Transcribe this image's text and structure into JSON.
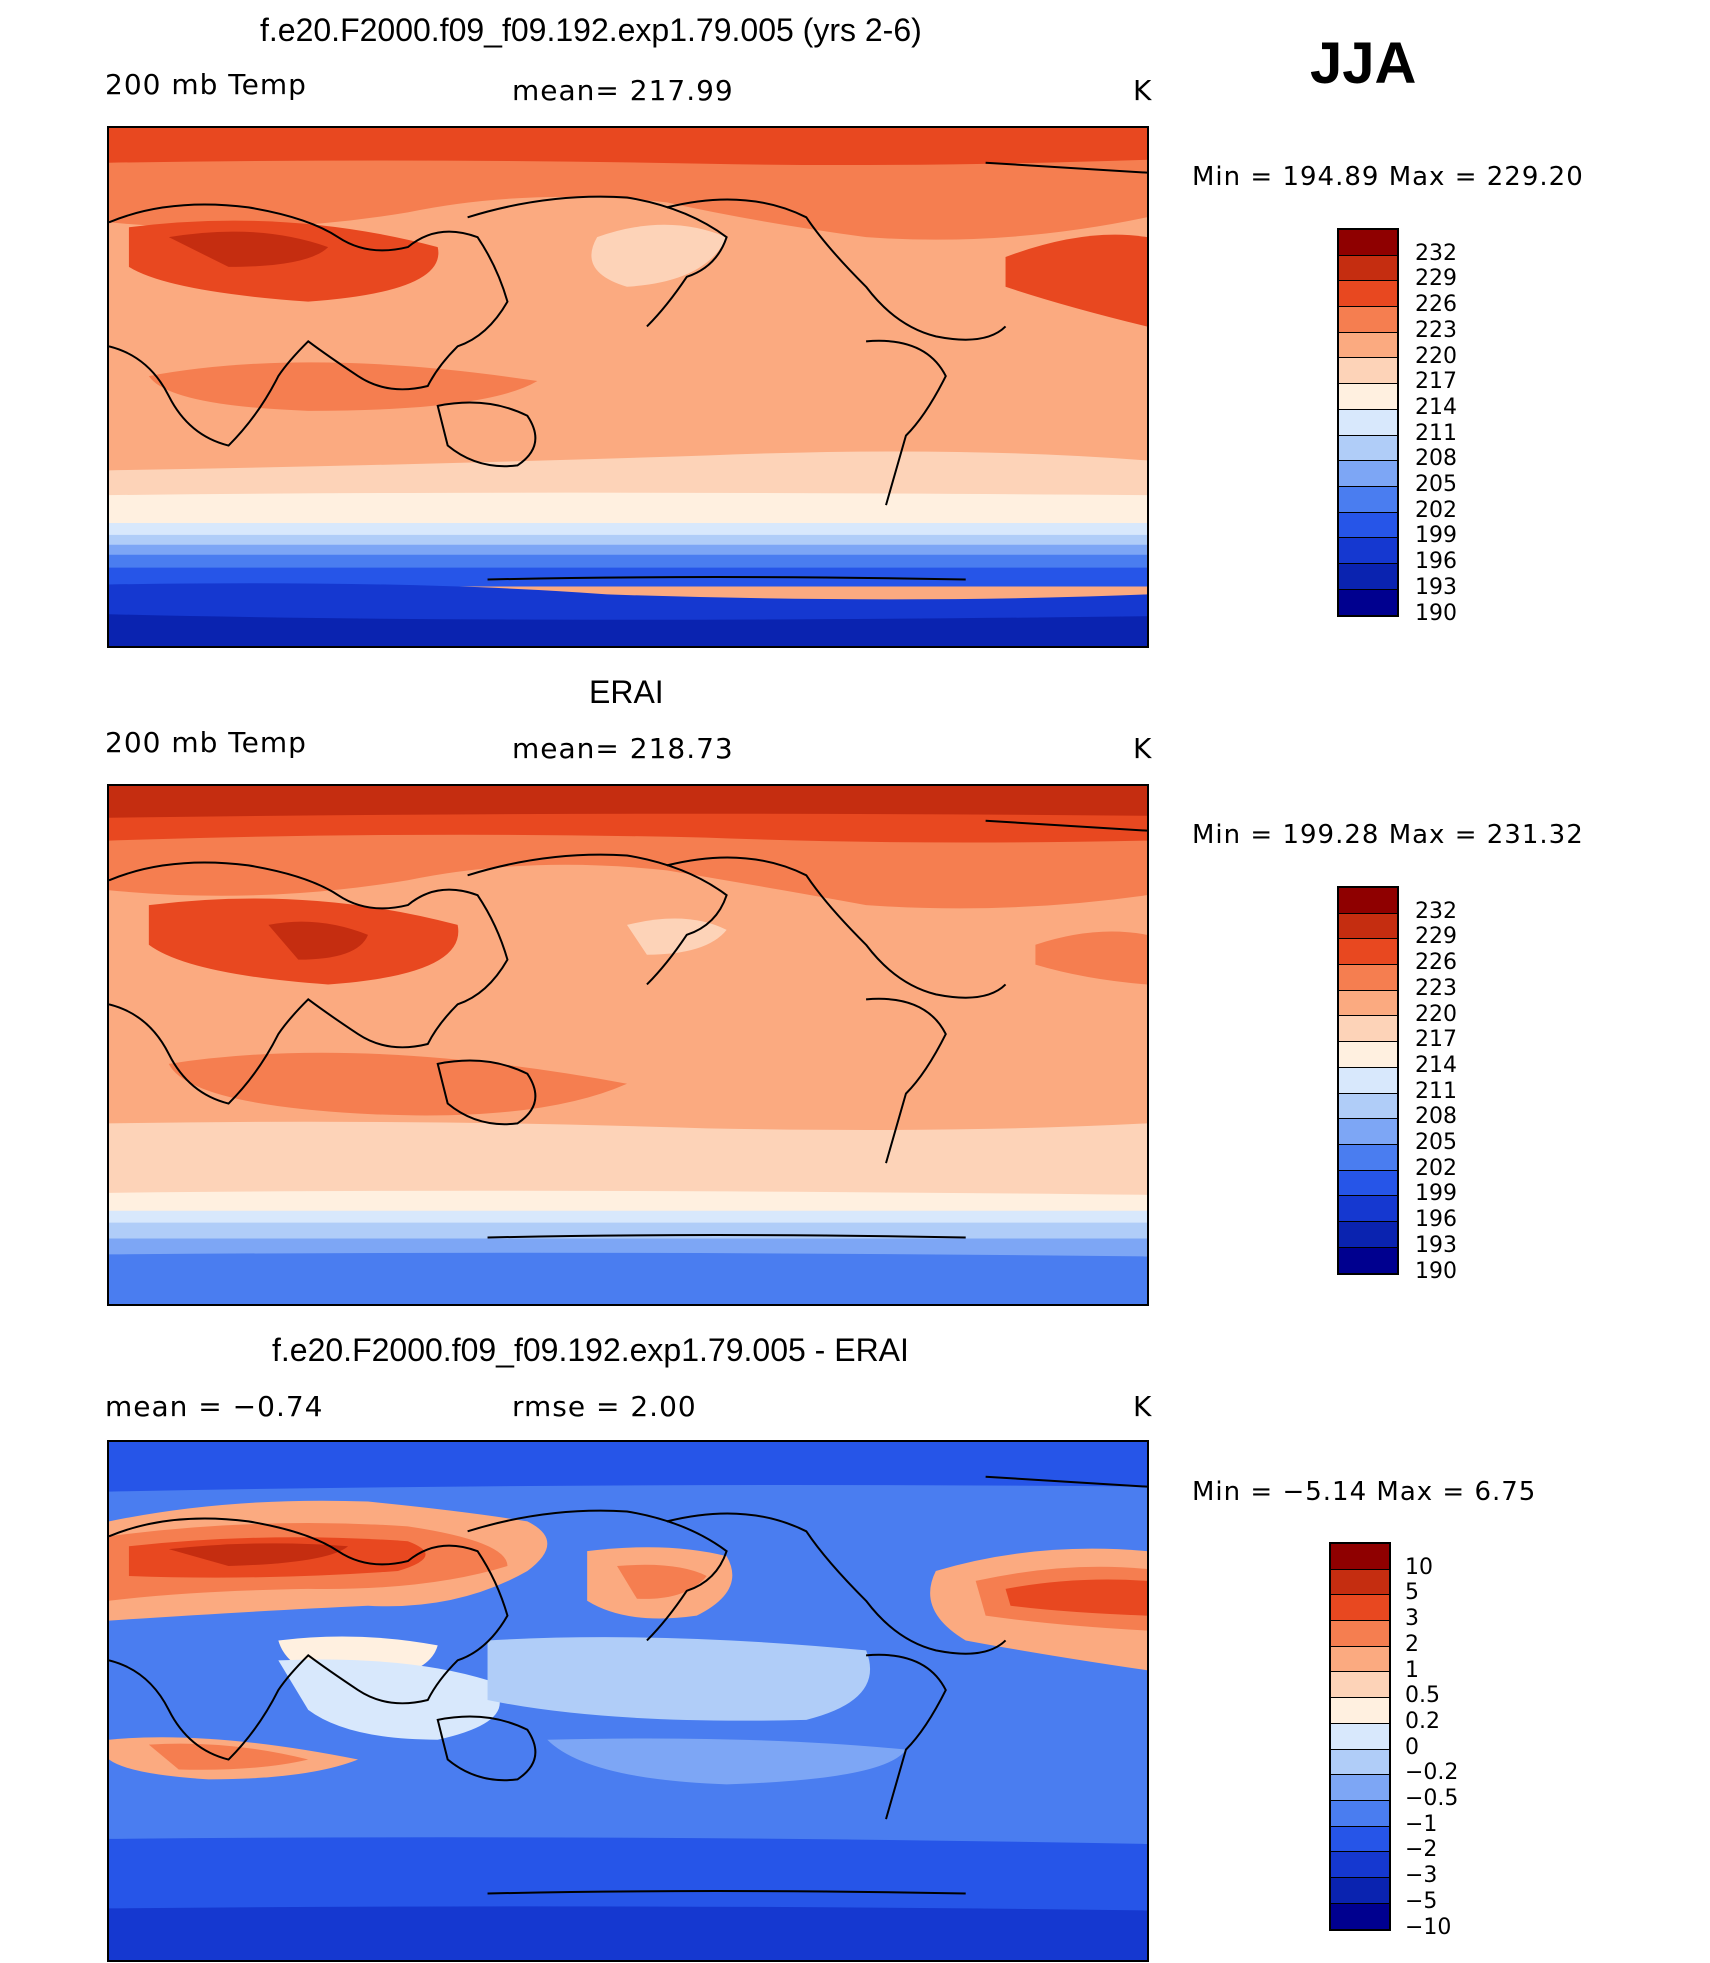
{
  "season": "JJA",
  "colors": {
    "warm_scale": [
      "#00008f",
      "#0a23b0",
      "#1538d0",
      "#2655e8",
      "#4a7df0",
      "#7da6f5",
      "#b0cdf8",
      "#d8e8fc",
      "#fff0e0",
      "#fdd3b8",
      "#fbaa80",
      "#f57e50",
      "#e84820",
      "#c52d10",
      "#8f0000"
    ],
    "diff_scale": [
      "#00008f",
      "#0a23b0",
      "#1538d0",
      "#2655e8",
      "#4a7df0",
      "#7da6f5",
      "#b0cdf8",
      "#d8e8fc",
      "#fff0e0",
      "#fdd3b8",
      "#fbaa80",
      "#f57e50",
      "#e84820",
      "#c52d10",
      "#8f0000"
    ],
    "coast": "#000000"
  },
  "panels": [
    {
      "title": "f.e20.F2000.f09_f09.192.exp1.79.005 (yrs 2-6)",
      "left_label": "200 mb Temp",
      "center_label": "mean= 217.99",
      "units": "K",
      "minmax": "Min  =  194.89  Max  =  229.20",
      "colorbar_labels": [
        "232",
        "229",
        "226",
        "223",
        "220",
        "217",
        "214",
        "211",
        "208",
        "205",
        "202",
        "199",
        "196",
        "193",
        "190"
      ]
    },
    {
      "title": "ERAI",
      "left_label": "200 mb Temp",
      "center_label": "mean= 218.73",
      "units": "K",
      "minmax": "Min  =  199.28  Max  =  231.32",
      "colorbar_labels": [
        "232",
        "229",
        "226",
        "223",
        "220",
        "217",
        "214",
        "211",
        "208",
        "205",
        "202",
        "199",
        "196",
        "193",
        "190"
      ]
    },
    {
      "title": "f.e20.F2000.f09_f09.192.exp1.79.005 - ERAI",
      "left_label": "mean  =    −0.74",
      "center_label": "rmse  =     2.00",
      "units": "K",
      "minmax": "Min  =   −5.14  Max  =     6.75",
      "colorbar_labels": [
        "10",
        "5",
        "3",
        "2",
        "1",
        "0.5",
        "0.2",
        "0",
        "−0.2",
        "−0.5",
        "−1",
        "−2",
        "−3",
        "−5",
        "−10"
      ]
    }
  ]
}
